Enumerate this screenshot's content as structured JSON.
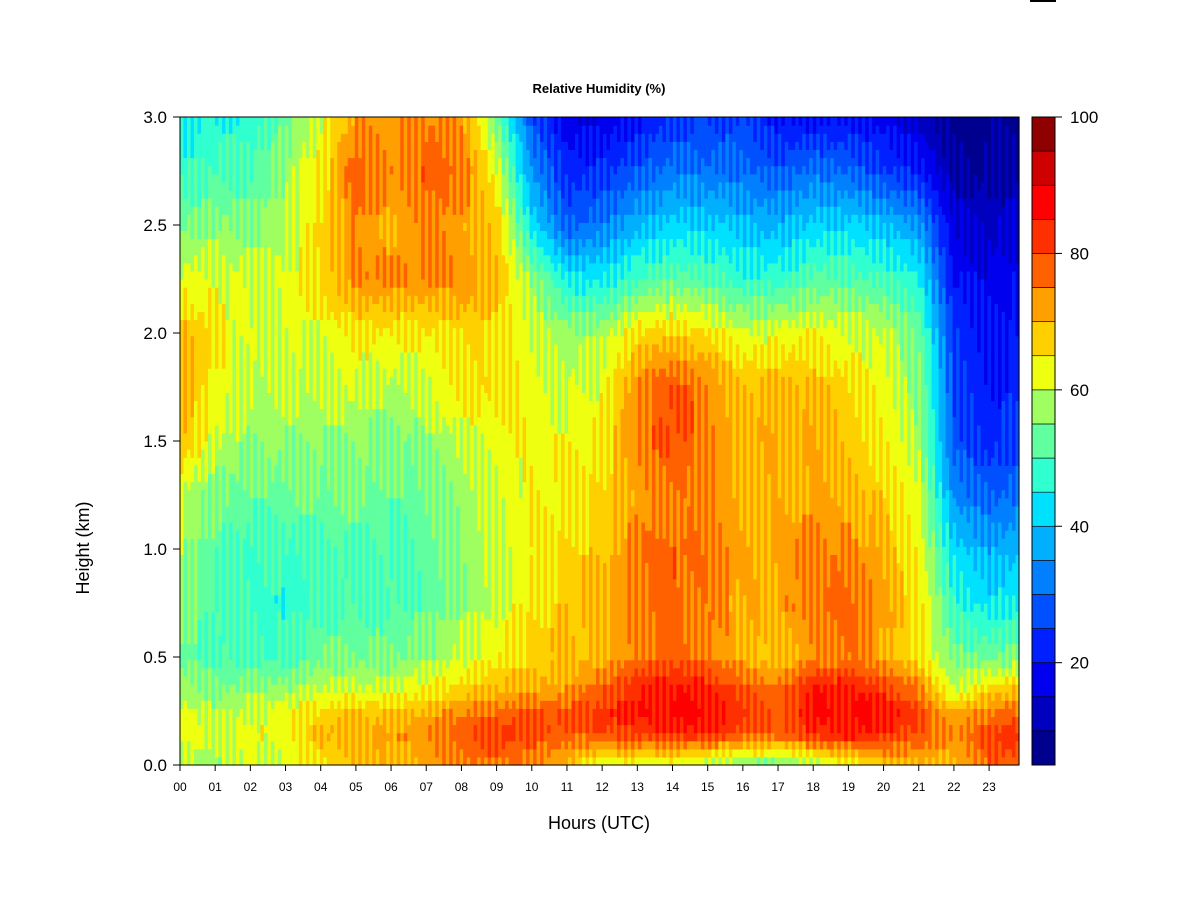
{
  "chart_data": {
    "type": "heatmap",
    "title": "Relative Humidity (%)",
    "xlabel": "Hours (UTC)",
    "ylabel": "Height (km)",
    "x_tick_labels": [
      "00",
      "01",
      "02",
      "03",
      "04",
      "05",
      "06",
      "07",
      "08",
      "09",
      "10",
      "11",
      "12",
      "13",
      "14",
      "15",
      "16",
      "17",
      "18",
      "19",
      "20",
      "21",
      "22",
      "23"
    ],
    "x_range": [
      0,
      23.85
    ],
    "y_ticks": [
      0.0,
      0.5,
      1.0,
      1.5,
      2.0,
      2.5,
      3.0
    ],
    "y_tick_labels": [
      "0.0",
      "0.5",
      "1.0",
      "1.5",
      "2.0",
      "2.5",
      "3.0"
    ],
    "ylim": [
      0,
      3.0
    ],
    "colorbar": {
      "range": [
        5,
        100
      ],
      "tick_values": [
        20,
        40,
        60,
        80,
        100
      ],
      "tick_labels": [
        "20",
        "40",
        "60",
        "80",
        "100"
      ],
      "levels": [
        {
          "from": 5,
          "to": 10,
          "color": "#00008F"
        },
        {
          "from": 10,
          "to": 15,
          "color": "#0000BF"
        },
        {
          "from": 15,
          "to": 20,
          "color": "#0000EF"
        },
        {
          "from": 20,
          "to": 25,
          "color": "#0020FF"
        },
        {
          "from": 25,
          "to": 30,
          "color": "#0050FF"
        },
        {
          "from": 30,
          "to": 35,
          "color": "#0080FF"
        },
        {
          "from": 35,
          "to": 40,
          "color": "#00B0FF"
        },
        {
          "from": 40,
          "to": 45,
          "color": "#00E0FF"
        },
        {
          "from": 45,
          "to": 50,
          "color": "#30FFCF"
        },
        {
          "from": 50,
          "to": 55,
          "color": "#60FF9F"
        },
        {
          "from": 55,
          "to": 60,
          "color": "#9FFF60"
        },
        {
          "from": 60,
          "to": 65,
          "color": "#EFFF10"
        },
        {
          "from": 65,
          "to": 70,
          "color": "#FFD000"
        },
        {
          "from": 70,
          "to": 75,
          "color": "#FFA000"
        },
        {
          "from": 75,
          "to": 80,
          "color": "#FF6000"
        },
        {
          "from": 80,
          "to": 85,
          "color": "#FF3000"
        },
        {
          "from": 85,
          "to": 90,
          "color": "#FF0000"
        },
        {
          "from": 90,
          "to": 95,
          "color": "#CF0000"
        },
        {
          "from": 95,
          "to": 100,
          "color": "#8F0000"
        }
      ]
    },
    "heights_km": [
      0.0,
      0.15,
      0.25,
      0.35,
      0.5,
      0.75,
      1.0,
      1.25,
      1.5,
      1.75,
      2.0,
      2.25,
      2.5,
      2.75,
      3.0
    ],
    "anchor_hours": [
      0,
      1,
      2,
      3,
      4,
      5,
      6,
      7,
      8,
      9,
      10,
      11,
      12,
      13,
      14,
      15,
      16,
      17,
      18,
      19,
      20,
      21,
      22,
      23,
      23.85
    ],
    "rh_percent": [
      [
        60,
        58,
        62,
        60,
        64,
        68,
        72,
        72,
        74,
        74,
        72,
        70,
        62,
        60,
        58,
        56,
        55,
        55,
        58,
        62,
        66,
        70,
        72,
        78,
        78
      ],
      [
        64,
        62,
        64,
        62,
        68,
        70,
        74,
        76,
        78,
        80,
        80,
        80,
        82,
        82,
        82,
        82,
        80,
        80,
        84,
        84,
        82,
        80,
        76,
        82,
        82
      ],
      [
        62,
        60,
        62,
        62,
        64,
        68,
        70,
        72,
        74,
        74,
        78,
        80,
        84,
        86,
        86,
        86,
        84,
        80,
        86,
        86,
        84,
        80,
        72,
        76,
        76
      ],
      [
        58,
        56,
        58,
        56,
        58,
        60,
        62,
        66,
        66,
        68,
        70,
        74,
        80,
        84,
        84,
        84,
        80,
        78,
        86,
        84,
        80,
        76,
        62,
        68,
        68
      ],
      [
        54,
        52,
        52,
        48,
        52,
        54,
        56,
        58,
        60,
        62,
        66,
        70,
        72,
        76,
        76,
        74,
        72,
        70,
        74,
        74,
        70,
        66,
        56,
        54,
        54
      ],
      [
        56,
        52,
        50,
        46,
        48,
        50,
        52,
        54,
        56,
        58,
        64,
        70,
        72,
        76,
        76,
        74,
        72,
        74,
        78,
        76,
        70,
        66,
        50,
        44,
        44
      ],
      [
        58,
        54,
        50,
        48,
        48,
        50,
        52,
        54,
        56,
        58,
        62,
        68,
        70,
        76,
        76,
        74,
        72,
        74,
        76,
        72,
        68,
        64,
        44,
        38,
        38
      ],
      [
        60,
        56,
        54,
        52,
        52,
        54,
        54,
        56,
        56,
        58,
        62,
        66,
        68,
        72,
        74,
        72,
        70,
        72,
        72,
        70,
        66,
        62,
        36,
        30,
        30
      ],
      [
        70,
        62,
        58,
        56,
        54,
        56,
        56,
        58,
        60,
        60,
        62,
        64,
        66,
        76,
        78,
        74,
        70,
        74,
        72,
        66,
        62,
        58,
        30,
        24,
        24
      ],
      [
        72,
        66,
        60,
        58,
        58,
        60,
        60,
        62,
        64,
        64,
        62,
        62,
        64,
        74,
        78,
        74,
        70,
        72,
        70,
        64,
        60,
        56,
        28,
        22,
        22
      ],
      [
        70,
        66,
        62,
        60,
        60,
        64,
        66,
        66,
        66,
        64,
        60,
        58,
        60,
        66,
        66,
        64,
        62,
        64,
        64,
        60,
        58,
        54,
        26,
        20,
        20
      ],
      [
        62,
        64,
        62,
        60,
        64,
        74,
        76,
        76,
        74,
        68,
        56,
        46,
        46,
        50,
        50,
        50,
        48,
        50,
        52,
        50,
        48,
        46,
        22,
        18,
        18
      ],
      [
        54,
        58,
        56,
        58,
        64,
        74,
        72,
        76,
        72,
        66,
        42,
        30,
        34,
        38,
        40,
        40,
        40,
        40,
        42,
        40,
        38,
        36,
        18,
        14,
        14
      ],
      [
        48,
        52,
        52,
        56,
        62,
        78,
        76,
        80,
        76,
        60,
        34,
        24,
        26,
        28,
        30,
        30,
        32,
        30,
        32,
        28,
        24,
        22,
        12,
        10,
        10
      ],
      [
        44,
        48,
        48,
        52,
        60,
        72,
        74,
        76,
        72,
        52,
        26,
        18,
        18,
        20,
        22,
        24,
        26,
        22,
        20,
        18,
        16,
        14,
        8,
        8,
        8
      ]
    ]
  }
}
